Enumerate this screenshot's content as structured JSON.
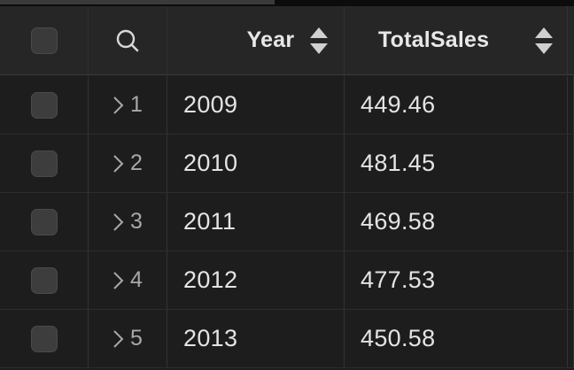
{
  "table": {
    "columns": {
      "year": "Year",
      "total_sales": "TotalSales"
    },
    "rows": [
      {
        "index": "1",
        "year": "2009",
        "total_sales": "449.46"
      },
      {
        "index": "2",
        "year": "2010",
        "total_sales": "481.45"
      },
      {
        "index": "3",
        "year": "2011",
        "total_sales": "469.58"
      },
      {
        "index": "4",
        "year": "2012",
        "total_sales": "477.53"
      },
      {
        "index": "5",
        "year": "2013",
        "total_sales": "450.58"
      }
    ]
  },
  "icons": {
    "search": "search-icon",
    "sort": "sort-icon",
    "expand": "chevron-right-icon"
  },
  "colors": {
    "background": "#1d1d1d",
    "header_background": "#262626",
    "text": "#e4e4e4",
    "muted_text": "#a8a8a8",
    "checkbox": "#3d3d3d"
  }
}
